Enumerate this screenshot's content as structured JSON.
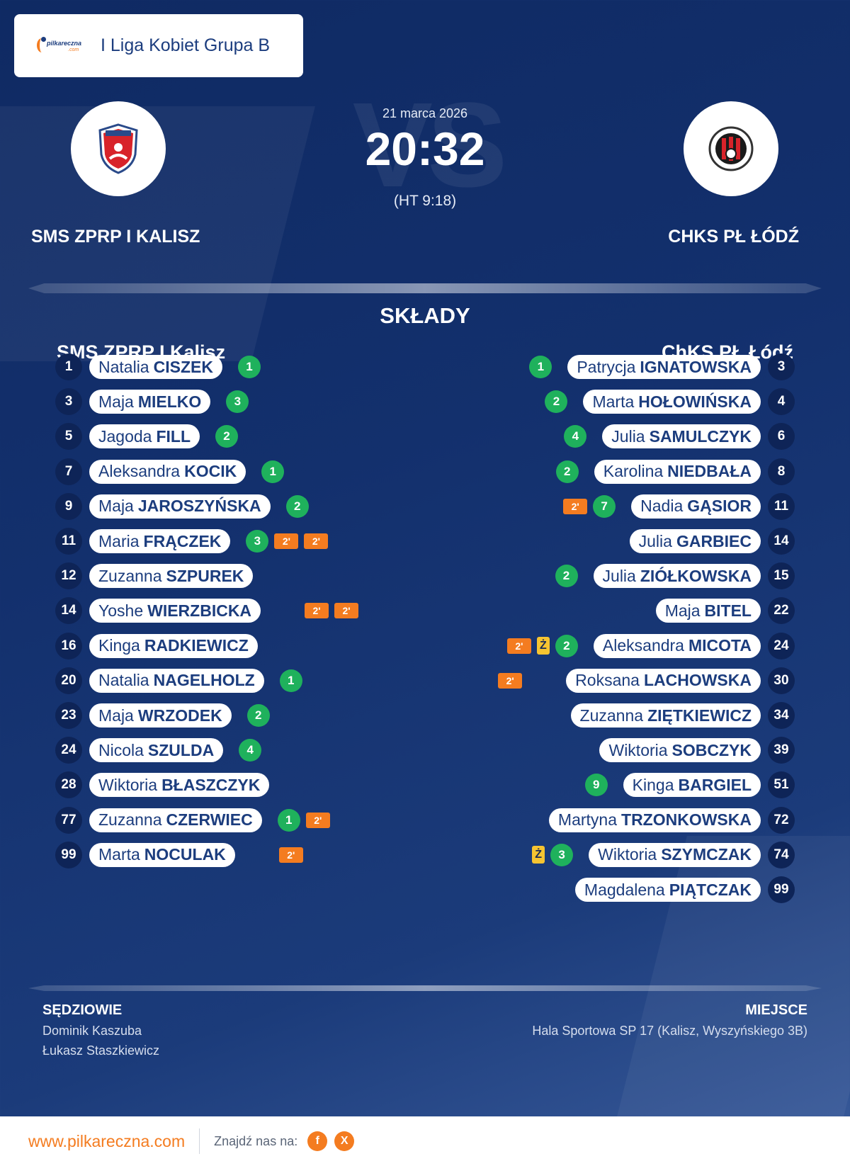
{
  "header": {
    "league": "I Liga Kobiet Grupa B",
    "logo_text": "pilkareczna",
    "logo_dotcom": ".com"
  },
  "match": {
    "date": "21 marca 2026",
    "score": "20:32",
    "halftime": "(HT 9:18)",
    "vs_text": "VS",
    "home_team": "SMS ZPRP I KALISZ",
    "away_team": "CHKS PŁ ŁÓDŹ"
  },
  "lineups": {
    "title": "SKŁADY",
    "home_title": "SMS ZPRP I Kalisz",
    "away_title": "ChKS PŁ Łódź",
    "home": [
      {
        "num": "1",
        "first": "Natalia",
        "last": "CISZEK",
        "goals": "1",
        "yellow": false,
        "susp": 0
      },
      {
        "num": "3",
        "first": "Maja",
        "last": "MIELKO",
        "goals": "3",
        "yellow": false,
        "susp": 0
      },
      {
        "num": "5",
        "first": "Jagoda",
        "last": "FILL",
        "goals": "2",
        "yellow": false,
        "susp": 0
      },
      {
        "num": "7",
        "first": "Aleksandra",
        "last": "KOCIK",
        "goals": "1",
        "yellow": false,
        "susp": 0
      },
      {
        "num": "9",
        "first": "Maja",
        "last": "JAROSZYŃSKA",
        "goals": "2",
        "yellow": false,
        "susp": 0
      },
      {
        "num": "11",
        "first": "Maria",
        "last": "FRĄCZEK",
        "goals": "3",
        "yellow": false,
        "susp": 2
      },
      {
        "num": "12",
        "first": "Zuzanna",
        "last": "SZPUREK",
        "goals": "",
        "yellow": false,
        "susp": 0
      },
      {
        "num": "14",
        "first": "Yoshe",
        "last": "WIERZBICKA",
        "goals": "",
        "yellow": false,
        "susp": 2
      },
      {
        "num": "16",
        "first": "Kinga",
        "last": "RADKIEWICZ",
        "goals": "",
        "yellow": false,
        "susp": 0
      },
      {
        "num": "20",
        "first": "Natalia",
        "last": "NAGELHOLZ",
        "goals": "1",
        "yellow": false,
        "susp": 0
      },
      {
        "num": "23",
        "first": "Maja",
        "last": "WRZODEK",
        "goals": "2",
        "yellow": false,
        "susp": 0
      },
      {
        "num": "24",
        "first": "Nicola",
        "last": "SZULDA",
        "goals": "4",
        "yellow": false,
        "susp": 0
      },
      {
        "num": "28",
        "first": "Wiktoria",
        "last": "BŁASZCZYK",
        "goals": "",
        "yellow": false,
        "susp": 0
      },
      {
        "num": "77",
        "first": "Zuzanna",
        "last": "CZERWIEC",
        "goals": "1",
        "yellow": false,
        "susp": 1
      },
      {
        "num": "99",
        "first": "Marta",
        "last": "NOCULAK",
        "goals": "",
        "yellow": false,
        "susp": 1
      }
    ],
    "away": [
      {
        "num": "3",
        "first": "Patrycja",
        "last": "IGNATOWSKA",
        "goals": "1",
        "yellow": false,
        "susp": 0
      },
      {
        "num": "4",
        "first": "Marta",
        "last": "HOŁOWIŃSKA",
        "goals": "2",
        "yellow": false,
        "susp": 0
      },
      {
        "num": "6",
        "first": "Julia",
        "last": "SAMULCZYK",
        "goals": "4",
        "yellow": false,
        "susp": 0
      },
      {
        "num": "8",
        "first": "Karolina",
        "last": "NIEDBAŁA",
        "goals": "2",
        "yellow": false,
        "susp": 0
      },
      {
        "num": "11",
        "first": "Nadia",
        "last": "GĄSIOR",
        "goals": "7",
        "yellow": false,
        "susp": 1
      },
      {
        "num": "14",
        "first": "Julia",
        "last": "GARBIEC",
        "goals": "",
        "yellow": false,
        "susp": 0
      },
      {
        "num": "15",
        "first": "Julia",
        "last": "ZIÓŁKOWSKA",
        "goals": "2",
        "yellow": false,
        "susp": 0
      },
      {
        "num": "22",
        "first": "Maja",
        "last": "BITEL",
        "goals": "",
        "yellow": false,
        "susp": 0
      },
      {
        "num": "24",
        "first": "Aleksandra",
        "last": "MICOTA",
        "goals": "2",
        "yellow": true,
        "susp": 1
      },
      {
        "num": "30",
        "first": "Roksana",
        "last": "LACHOWSKA",
        "goals": "",
        "yellow": false,
        "susp": 1
      },
      {
        "num": "34",
        "first": "Zuzanna",
        "last": "ZIĘTKIEWICZ",
        "goals": "",
        "yellow": false,
        "susp": 0
      },
      {
        "num": "39",
        "first": "Wiktoria",
        "last": "SOBCZYK",
        "goals": "",
        "yellow": false,
        "susp": 0
      },
      {
        "num": "51",
        "first": "Kinga",
        "last": "BARGIEL",
        "goals": "9",
        "yellow": false,
        "susp": 0
      },
      {
        "num": "72",
        "first": "Martyna",
        "last": "TRZONKOWSKA",
        "goals": "",
        "yellow": false,
        "susp": 0
      },
      {
        "num": "74",
        "first": "Wiktoria",
        "last": "SZYMCZAK",
        "goals": "3",
        "yellow": true,
        "susp": 0
      },
      {
        "num": "99",
        "first": "Magdalena",
        "last": "PIĄTCZAK",
        "goals": "",
        "yellow": false,
        "susp": 0
      }
    ],
    "susp_label": "2'",
    "yellow_label": "Ż"
  },
  "info": {
    "referees_label": "SĘDZIOWIE",
    "referees": [
      "Dominik Kaszuba",
      "Łukasz Staszkiewicz"
    ],
    "venue_label": "MIEJSCE",
    "venue": "Hala Sportowa SP 17 (Kalisz, Wyszyńskiego 3B)"
  },
  "footer": {
    "url": "www.pilkareczna.com",
    "find_us": "Znajdź nas na:",
    "facebook": "f",
    "x": "X"
  },
  "colors": {
    "goal": "#1fb15c",
    "suspension": "#f47c20",
    "yellow_card": "#f6c431",
    "brand": "#1c3d7e"
  }
}
